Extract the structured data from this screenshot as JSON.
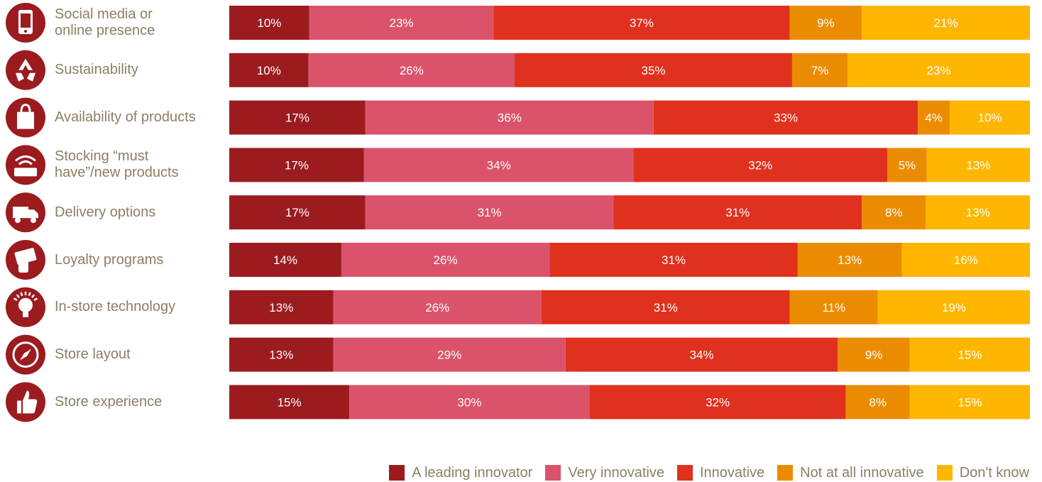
{
  "chart_data": {
    "type": "bar",
    "orientation": "horizontal",
    "stacked": true,
    "categories": [
      "Social media or\nonline presence",
      "Sustainability",
      "Availability of products",
      "Stocking “must\nhave”/new products",
      "Delivery options",
      "Loyalty programs",
      "In-store technology",
      "Store layout",
      "Store experience"
    ],
    "category_icons": [
      "mobile-phone-icon",
      "recycle-icon",
      "shopping-bag-icon",
      "contactless-payment-icon",
      "delivery-truck-icon",
      "loyalty-card-icon",
      "lightbulb-icon",
      "compass-icon",
      "thumbs-up-icon"
    ],
    "series": [
      {
        "name": "A leading innovator",
        "color": "#9b1b1f",
        "values": [
          10,
          10,
          17,
          17,
          17,
          14,
          13,
          13,
          15
        ]
      },
      {
        "name": "Very innovative",
        "color": "#db536a",
        "values": [
          23,
          26,
          36,
          34,
          31,
          26,
          26,
          29,
          30
        ]
      },
      {
        "name": "Innovative",
        "color": "#e0301e",
        "values": [
          37,
          35,
          33,
          32,
          31,
          31,
          31,
          34,
          32
        ]
      },
      {
        "name": "Not at all innovative",
        "color": "#eb8c00",
        "values": [
          9,
          7,
          4,
          5,
          8,
          13,
          11,
          9,
          8
        ]
      },
      {
        "name": "Don't know",
        "color": "#ffb600",
        "values": [
          21,
          23,
          10,
          13,
          13,
          16,
          19,
          15,
          15
        ]
      }
    ],
    "value_suffix": "%",
    "legend_position": "bottom-right",
    "grid": false,
    "label_color": "#8b7f63",
    "icon_color": "#9b1b1f"
  }
}
